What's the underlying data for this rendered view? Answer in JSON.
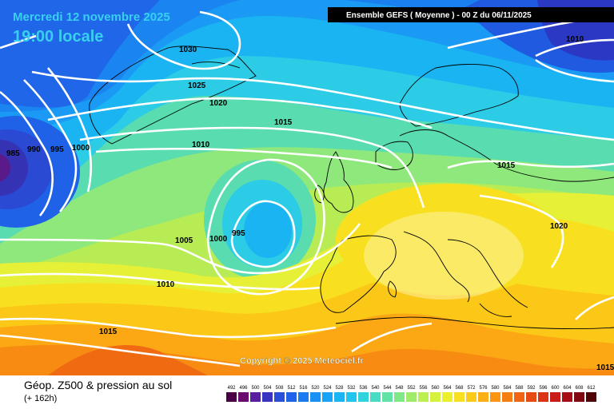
{
  "header": {
    "date": "Mercredi 12 novembre 2025",
    "time": "19:00 locale",
    "run": "Ensemble GEFS  ( Moyenne )  -  00 Z du 06/11/2025"
  },
  "copyright": "Copyright © 2025 Meteociel.fr",
  "legend": {
    "title": "Géop. Z500 & pression au sol",
    "subtitle": "(+ 162h)",
    "scale_values": [
      "492",
      "496",
      "500",
      "504",
      "508",
      "512",
      "516",
      "520",
      "524",
      "528",
      "532",
      "536",
      "540",
      "544",
      "548",
      "552",
      "556",
      "560",
      "564",
      "568",
      "572",
      "576",
      "580",
      "584",
      "588",
      "592",
      "596",
      "600",
      "604",
      "608",
      "612"
    ],
    "scale_colors": [
      "#4a0046",
      "#6a0a6e",
      "#5a1fa0",
      "#3b34c0",
      "#2a4fd8",
      "#2063e8",
      "#1a7af0",
      "#1990f4",
      "#18a4f6",
      "#1ab6f4",
      "#20c6ee",
      "#30d2dc",
      "#48dcc4",
      "#62e2a6",
      "#80e888",
      "#a0ec6a",
      "#bcf050",
      "#d6f23c",
      "#ecf02a",
      "#f8e020",
      "#fcca18",
      "#fcb014",
      "#fa9612",
      "#f67e10",
      "#f06412",
      "#e84a14",
      "#dc3216",
      "#c81c18",
      "#a80c14",
      "#800810",
      "#500408"
    ]
  },
  "isobar_labels": [
    "1030",
    "1025",
    "1020",
    "1015",
    "1010",
    "1005",
    "1000",
    "995",
    "990",
    "985",
    "1010",
    "1015",
    "1015",
    "1020",
    "1010",
    "1015"
  ]
}
